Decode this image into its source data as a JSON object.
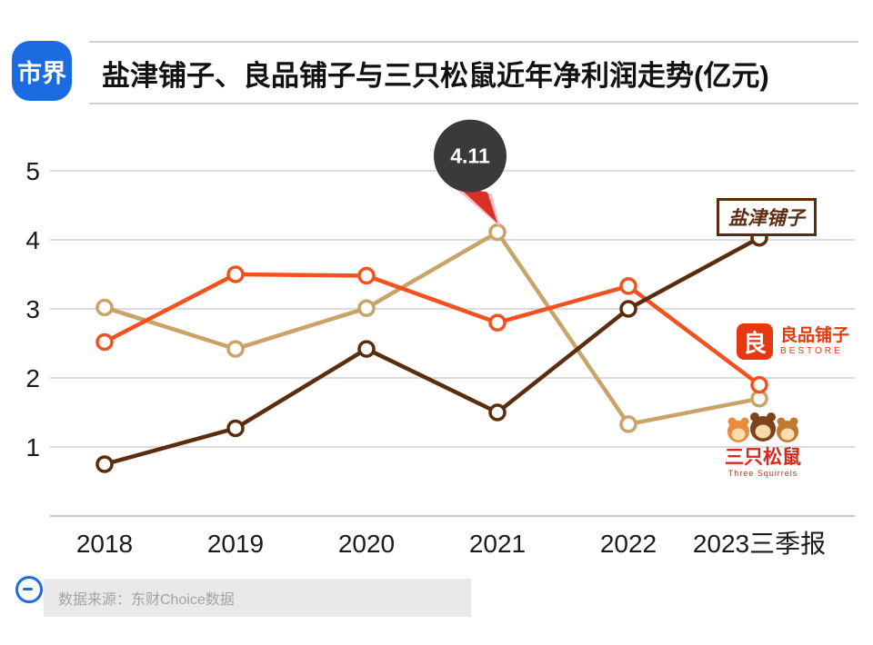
{
  "header": {
    "logo_text": "市界",
    "title": "盐津铺子、良品铺子与三只松鼠近年净利润走势(亿元)"
  },
  "chart_data": {
    "type": "line",
    "title": "盐津铺子、良品铺子与三只松鼠近年净利润走势(亿元)",
    "unit": "亿元",
    "categories": [
      "2018",
      "2019",
      "2020",
      "2021",
      "2022",
      "2023三季报"
    ],
    "series": [
      {
        "name": "盐津铺子",
        "color": "#5b2d0e",
        "values": [
          0.75,
          1.27,
          2.42,
          1.5,
          3.0,
          4.03
        ]
      },
      {
        "name": "良品铺子",
        "color": "#f4511e",
        "values": [
          2.52,
          3.5,
          3.48,
          2.8,
          3.33,
          1.9
        ]
      },
      {
        "name": "三只松鼠",
        "color": "#c9a368",
        "values": [
          3.02,
          2.42,
          3.01,
          4.11,
          1.33,
          1.7
        ]
      }
    ],
    "ylim": [
      0,
      5
    ],
    "yticks": [
      1,
      2,
      3,
      4,
      5
    ],
    "grid": true,
    "legend_position": "right-logos",
    "annotation": {
      "series": "三只松鼠",
      "category": "2021",
      "label": "4.11"
    }
  },
  "legend": {
    "yanjin": "盐津铺子",
    "bestore_glyph": "良",
    "bestore_cn": "良品铺子",
    "bestore_en": "BESTORE",
    "squirrels_cn": "三只松鼠",
    "squirrels_en": "Three Squirrels"
  },
  "footer": {
    "source": "数据来源：东财Choice数据"
  }
}
